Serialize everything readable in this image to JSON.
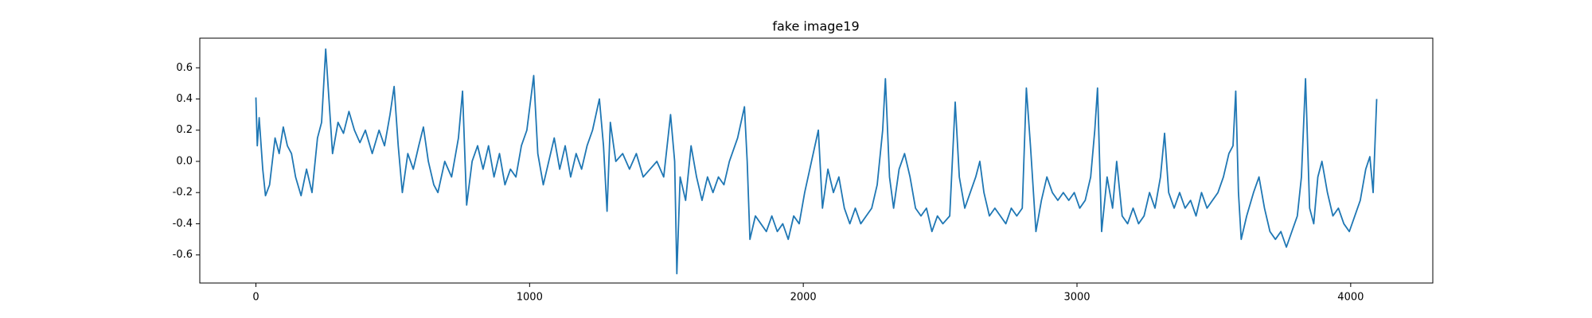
{
  "chart_data": {
    "type": "line",
    "title": "fake image19",
    "color": "#1f77b4",
    "x": [
      0,
      5,
      12,
      25,
      35,
      50,
      70,
      85,
      100,
      115,
      130,
      145,
      165,
      185,
      205,
      225,
      240,
      255,
      265,
      280,
      300,
      320,
      340,
      360,
      380,
      400,
      425,
      450,
      470,
      490,
      505,
      520,
      535,
      555,
      575,
      595,
      612,
      630,
      650,
      665,
      690,
      715,
      740,
      755,
      770,
      790,
      810,
      830,
      850,
      870,
      890,
      910,
      930,
      950,
      970,
      990,
      1015,
      1030,
      1050,
      1070,
      1090,
      1110,
      1130,
      1150,
      1170,
      1190,
      1210,
      1230,
      1255,
      1270,
      1283,
      1295,
      1315,
      1340,
      1365,
      1390,
      1415,
      1440,
      1465,
      1490,
      1515,
      1530,
      1538,
      1550,
      1570,
      1590,
      1610,
      1630,
      1650,
      1670,
      1690,
      1710,
      1730,
      1760,
      1785,
      1795,
      1805,
      1825,
      1845,
      1865,
      1885,
      1905,
      1925,
      1945,
      1965,
      1985,
      2005,
      2030,
      2055,
      2070,
      2090,
      2110,
      2130,
      2150,
      2170,
      2190,
      2210,
      2230,
      2250,
      2270,
      2290,
      2300,
      2315,
      2330,
      2350,
      2370,
      2390,
      2410,
      2430,
      2450,
      2470,
      2490,
      2510,
      2535,
      2555,
      2570,
      2590,
      2610,
      2630,
      2645,
      2660,
      2680,
      2700,
      2720,
      2740,
      2760,
      2780,
      2800,
      2815,
      2830,
      2850,
      2870,
      2890,
      2910,
      2930,
      2950,
      2970,
      2990,
      3010,
      3030,
      3050,
      3065,
      3075,
      3090,
      3110,
      3130,
      3145,
      3165,
      3185,
      3205,
      3225,
      3245,
      3265,
      3285,
      3305,
      3320,
      3335,
      3355,
      3375,
      3395,
      3415,
      3435,
      3455,
      3475,
      3495,
      3515,
      3535,
      3555,
      3570,
      3580,
      3590,
      3600,
      3620,
      3645,
      3665,
      3685,
      3705,
      3725,
      3745,
      3765,
      3785,
      3805,
      3820,
      3835,
      3850,
      3865,
      3880,
      3895,
      3915,
      3935,
      3955,
      3975,
      3995,
      4015,
      4035,
      4055,
      4070,
      4082,
      4095
    ],
    "values": [
      0.41,
      0.1,
      0.28,
      -0.05,
      -0.22,
      -0.15,
      0.15,
      0.05,
      0.22,
      0.1,
      0.05,
      -0.1,
      -0.22,
      -0.05,
      -0.2,
      0.15,
      0.25,
      0.72,
      0.45,
      0.05,
      0.25,
      0.18,
      0.32,
      0.2,
      0.12,
      0.2,
      0.05,
      0.2,
      0.1,
      0.3,
      0.48,
      0.1,
      -0.2,
      0.05,
      -0.05,
      0.1,
      0.22,
      0.0,
      -0.15,
      -0.2,
      0.0,
      -0.1,
      0.15,
      0.45,
      -0.28,
      0.0,
      0.1,
      -0.05,
      0.1,
      -0.1,
      0.05,
      -0.15,
      -0.05,
      -0.1,
      0.1,
      0.2,
      0.55,
      0.05,
      -0.15,
      0.0,
      0.15,
      -0.05,
      0.1,
      -0.1,
      0.05,
      -0.05,
      0.1,
      0.2,
      0.4,
      0.1,
      -0.32,
      0.25,
      0.0,
      0.05,
      -0.05,
      0.05,
      -0.1,
      -0.05,
      0.0,
      -0.1,
      0.3,
      0.0,
      -0.72,
      -0.1,
      -0.25,
      0.1,
      -0.1,
      -0.25,
      -0.1,
      -0.2,
      -0.1,
      -0.15,
      0.0,
      0.15,
      0.35,
      0.0,
      -0.5,
      -0.35,
      -0.4,
      -0.45,
      -0.35,
      -0.45,
      -0.4,
      -0.5,
      -0.35,
      -0.4,
      -0.2,
      0.0,
      0.2,
      -0.3,
      -0.05,
      -0.2,
      -0.1,
      -0.3,
      -0.4,
      -0.3,
      -0.4,
      -0.35,
      -0.3,
      -0.15,
      0.2,
      0.53,
      -0.1,
      -0.3,
      -0.05,
      0.05,
      -0.1,
      -0.3,
      -0.35,
      -0.3,
      -0.45,
      -0.35,
      -0.4,
      -0.35,
      0.38,
      -0.1,
      -0.3,
      -0.2,
      -0.1,
      0.0,
      -0.2,
      -0.35,
      -0.3,
      -0.35,
      -0.4,
      -0.3,
      -0.35,
      -0.3,
      0.47,
      0.1,
      -0.45,
      -0.25,
      -0.1,
      -0.2,
      -0.25,
      -0.2,
      -0.25,
      -0.2,
      -0.3,
      -0.25,
      -0.1,
      0.2,
      0.47,
      -0.45,
      -0.1,
      -0.3,
      0.0,
      -0.35,
      -0.4,
      -0.3,
      -0.4,
      -0.35,
      -0.2,
      -0.3,
      -0.1,
      0.18,
      -0.2,
      -0.3,
      -0.2,
      -0.3,
      -0.25,
      -0.35,
      -0.2,
      -0.3,
      -0.25,
      -0.2,
      -0.1,
      0.05,
      0.1,
      0.45,
      -0.2,
      -0.5,
      -0.35,
      -0.2,
      -0.1,
      -0.3,
      -0.45,
      -0.5,
      -0.45,
      -0.55,
      -0.45,
      -0.35,
      -0.1,
      0.53,
      -0.3,
      -0.4,
      -0.1,
      0.0,
      -0.2,
      -0.35,
      -0.3,
      -0.4,
      -0.45,
      -0.35,
      -0.25,
      -0.05,
      0.03,
      -0.2,
      0.4
    ],
    "xlim": [
      -205,
      4300
    ],
    "xticks": [
      0,
      1000,
      2000,
      3000,
      4000
    ],
    "ylim": [
      -0.78,
      0.79
    ],
    "yticks": [
      -0.6,
      -0.4,
      -0.2,
      {
        "value": 0,
        "label": "0.0"
      },
      0.2,
      0.4,
      0.6
    ]
  }
}
